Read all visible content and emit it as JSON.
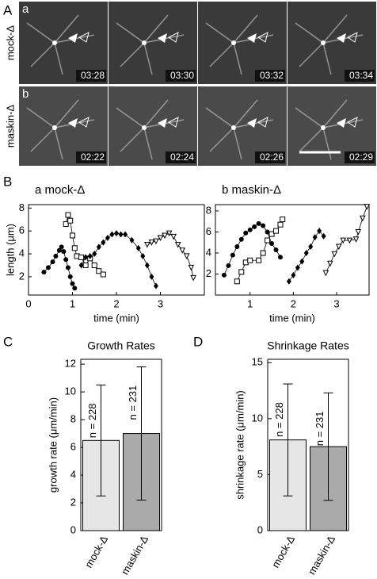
{
  "panel_labels": [
    "A",
    "B",
    "C",
    "D"
  ],
  "micrographs": {
    "rows": [
      {
        "letter": "a",
        "name": "mock-Δ",
        "times": [
          "03:28",
          "03:30",
          "03:32",
          "03:34"
        ]
      },
      {
        "letter": "b",
        "name": "maskin-Δ",
        "times": [
          "02:22",
          "02:24",
          "02:26",
          "02:29"
        ]
      }
    ]
  },
  "chart_data": [
    {
      "type": "line",
      "title": "a mock-Δ",
      "y_label": "length (μm)",
      "x_label": "time (min)",
      "xlim": [
        0,
        4
      ],
      "xticks": [
        0,
        1,
        2,
        3
      ],
      "ylim": [
        0.4,
        8.3
      ],
      "yticks": [
        2,
        4,
        6,
        8
      ],
      "series": [
        {
          "color": "#000000",
          "marker": "circle",
          "x": [
            0.35,
            0.45,
            0.55,
            0.62,
            0.7,
            0.75,
            0.8,
            0.85,
            0.9,
            0.95,
            1.0,
            1.05
          ],
          "values": [
            2.4,
            2.8,
            3.3,
            3.8,
            4.3,
            4.6,
            4.2,
            3.5,
            2.8,
            2.0,
            1.4,
            1.0
          ]
        },
        {
          "color": "#000000",
          "marker": "square",
          "x": [
            0.85,
            0.9,
            0.95,
            1.0,
            1.05,
            1.1,
            1.2,
            1.3,
            1.4,
            1.5,
            1.6,
            1.7
          ],
          "values": [
            6.6,
            7.4,
            6.9,
            5.6,
            4.5,
            3.8,
            3.7,
            3.0,
            3.6,
            3.0,
            2.5,
            2.2
          ]
        },
        {
          "color": "#000000",
          "marker": "diamond",
          "x": [
            1.2,
            1.3,
            1.4,
            1.5,
            1.6,
            1.7,
            1.8,
            1.9,
            2.0,
            2.1,
            2.2,
            2.35,
            2.5,
            2.6,
            2.7,
            2.8,
            2.9
          ],
          "values": [
            3.0,
            3.7,
            3.8,
            4.0,
            4.6,
            5.0,
            5.4,
            5.7,
            5.8,
            5.7,
            5.7,
            5.2,
            4.5,
            3.8,
            3.0,
            2.0,
            1.2
          ]
        },
        {
          "color": "#000000",
          "marker": "triangle",
          "x": [
            2.7,
            2.8,
            2.9,
            3.0,
            3.1,
            3.2,
            3.3,
            3.4,
            3.5,
            3.6,
            3.7,
            3.75
          ],
          "values": [
            4.8,
            5.0,
            5.1,
            5.4,
            5.6,
            5.8,
            5.5,
            4.8,
            4.3,
            3.8,
            2.8,
            1.9
          ]
        }
      ]
    },
    {
      "type": "line",
      "title": "b maskin-Δ",
      "x_label": "time (min)",
      "xlim": [
        0.2,
        3.75
      ],
      "xticks": [
        1,
        2,
        3
      ],
      "ylim": [
        0,
        8.6
      ],
      "yticks": [
        2,
        4,
        6,
        8
      ],
      "series": [
        {
          "color": "#000000",
          "marker": "circle",
          "x": [
            0.4,
            0.5,
            0.6,
            0.7,
            0.8,
            0.9,
            1.0,
            1.1,
            1.2,
            1.3,
            1.4,
            1.5,
            1.6,
            1.7
          ],
          "values": [
            1.9,
            2.8,
            3.8,
            4.6,
            5.3,
            5.9,
            6.2,
            6.5,
            6.8,
            6.6,
            6.0,
            4.9,
            4.3,
            3.6
          ]
        },
        {
          "color": "#000000",
          "marker": "square",
          "x": [
            0.7,
            0.8,
            0.9,
            1.0,
            1.2,
            1.3,
            1.4,
            1.5,
            1.6,
            1.7,
            1.75
          ],
          "values": [
            1.3,
            2.2,
            3.1,
            3.3,
            3.3,
            4.0,
            5.2,
            5.8,
            6.1,
            6.7,
            7.2
          ]
        },
        {
          "color": "#000000",
          "marker": "diamond",
          "x": [
            1.9,
            2.0,
            2.1,
            2.2,
            2.3,
            2.4,
            2.5,
            2.6,
            2.7
          ],
          "values": [
            1.3,
            1.9,
            2.6,
            3.2,
            4.0,
            4.6,
            5.5,
            6.1,
            5.6
          ]
        },
        {
          "color": "#000000",
          "marker": "triangle",
          "x": [
            2.75,
            2.85,
            2.95,
            3.05,
            3.15,
            3.3,
            3.45,
            3.5,
            3.6,
            3.7
          ],
          "values": [
            2.1,
            3.0,
            3.9,
            4.6,
            5.2,
            5.2,
            5.3,
            6.0,
            7.3,
            8.4
          ]
        }
      ]
    },
    {
      "type": "bar",
      "title": "Growth Rates",
      "y_label": "growth rate (μm/min)",
      "categories": [
        "mock-Δ",
        "maskin-Δ"
      ],
      "values": [
        6.5,
        7.0
      ],
      "errors": [
        4.0,
        4.8
      ],
      "n_labels": [
        "n = 228",
        "n = 231"
      ],
      "colors": [
        "#e6e6e6",
        "#aaaaaa"
      ],
      "ylim": [
        0,
        12.35
      ],
      "yticks": [
        0,
        2,
        4,
        6,
        8,
        10,
        12
      ]
    },
    {
      "type": "bar",
      "title": "Shrinkage Rates",
      "y_label": "shrinkage rate (μm/min)",
      "categories": [
        "mock-Δ",
        "maskin-Δ"
      ],
      "values": [
        8.1,
        7.5
      ],
      "errors": [
        5.0,
        4.8
      ],
      "n_labels": [
        "n = 228",
        "n = 231"
      ],
      "colors": [
        "#e6e6e6",
        "#aaaaaa"
      ],
      "ylim": [
        0,
        15.3
      ],
      "yticks": [
        0,
        5,
        10,
        15
      ]
    }
  ]
}
